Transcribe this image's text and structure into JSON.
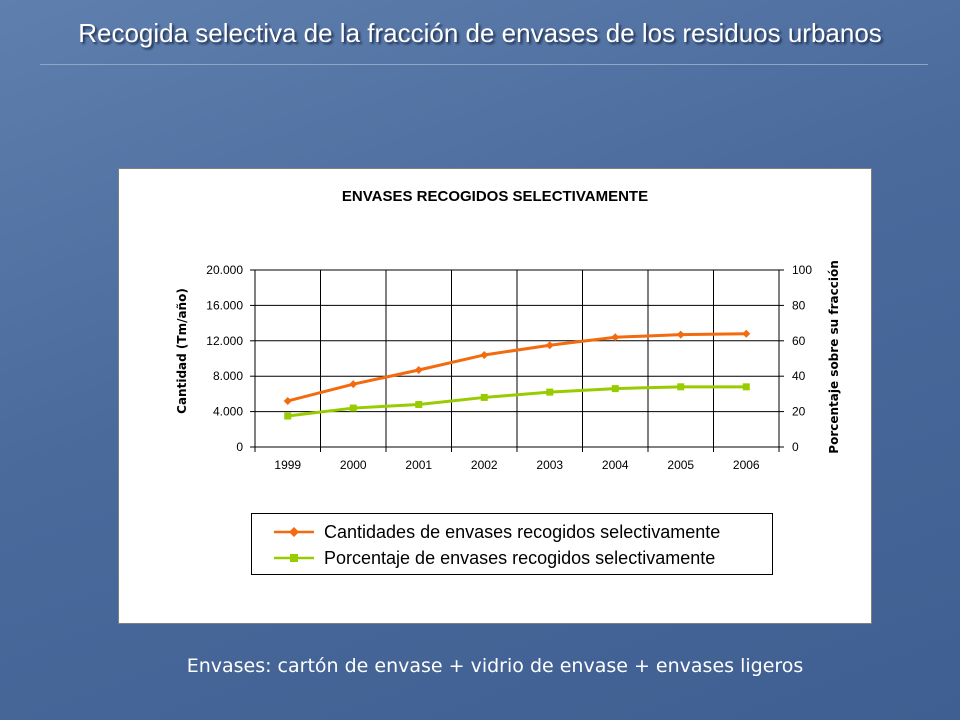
{
  "slide": {
    "title": "Recogida selectiva de la fracción de envases de los residuos urbanos",
    "caption": "Envases: cartón de envase + vidrio de envase + envases ligeros"
  },
  "chart_data": {
    "type": "line",
    "title": "ENVASES RECOGIDOS SELECTIVAMENTE",
    "categories": [
      "1999",
      "2000",
      "2001",
      "2002",
      "2003",
      "2004",
      "2005",
      "2006"
    ],
    "ylabel": "Cantidad (Tm/año)",
    "ylabel_right": "Porcentaje sobre su fracción",
    "ylim": [
      0,
      20000
    ],
    "ylim_right": [
      0,
      100
    ],
    "yticks": [
      "0",
      "4.000",
      "8.000",
      "12.000",
      "16.000",
      "20.000"
    ],
    "yticks_right": [
      "0",
      "20",
      "40",
      "60",
      "80",
      "100"
    ],
    "grid": true,
    "legend_position": "bottom",
    "series": [
      {
        "name": "Cantidades de envases recogidos selectivamente",
        "axis": "left",
        "color": "#f26b0f",
        "marker": "diamond",
        "values": [
          5200,
          7100,
          8700,
          10400,
          11500,
          12400,
          12700,
          12800
        ]
      },
      {
        "name": "Porcentaje de envases recogidos selectivamente",
        "axis": "right",
        "color": "#99cc00",
        "marker": "square",
        "values": [
          17.5,
          22,
          24,
          28,
          31,
          33,
          34,
          34
        ]
      }
    ]
  }
}
